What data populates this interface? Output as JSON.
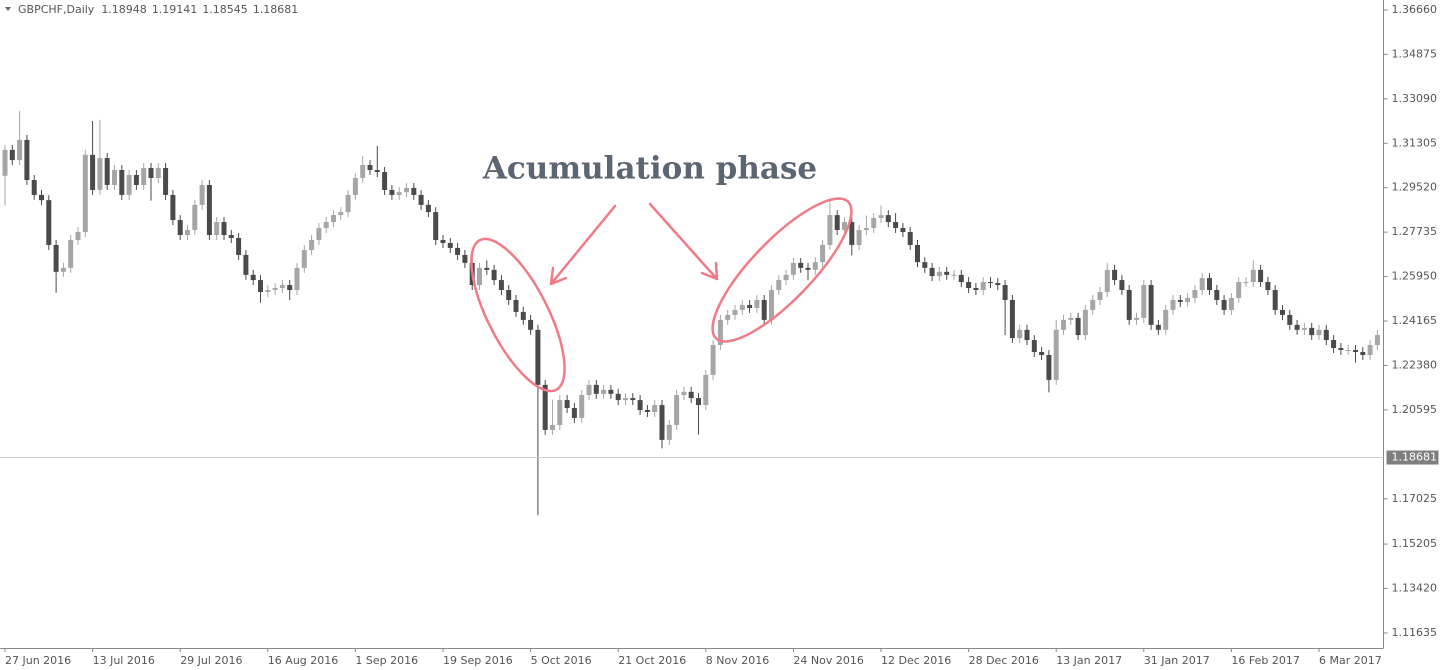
{
  "chart_data": {
    "type": "candlestick",
    "symbol": "GBPCHF,Daily",
    "quote": [
      1.18948,
      1.19141,
      1.18545,
      1.18681
    ],
    "annotation": "Acumulation phase",
    "current_price": 1.18681,
    "up_color": "#a6a6a6",
    "down_color": "#4a4a4a",
    "ylim": [
      1.1103,
      1.3706
    ],
    "yticks": [
      {
        "value": 1.3666,
        "label": "1.36660"
      },
      1.34875,
      {
        "value": 1.3309,
        "label": "1.33090"
      },
      1.31305,
      {
        "value": 1.2952,
        "label": "1.29520"
      },
      1.27735,
      {
        "value": 1.2595,
        "label": "1.25950"
      },
      1.24165,
      {
        "value": 1.2238,
        "label": "1.22380"
      },
      1.20595,
      1.17025,
      1.15205,
      {
        "value": 1.1342,
        "label": "1.13420"
      },
      1.11635
    ],
    "categories": [
      "27 Jun 2016",
      null,
      null,
      null,
      null,
      null,
      null,
      null,
      null,
      null,
      null,
      null,
      "13 Jul 2016",
      null,
      null,
      null,
      null,
      null,
      null,
      null,
      null,
      null,
      null,
      null,
      "29 Jul 2016",
      null,
      null,
      null,
      null,
      null,
      null,
      null,
      null,
      null,
      null,
      null,
      "16 Aug 2016",
      null,
      null,
      null,
      null,
      null,
      null,
      null,
      null,
      null,
      null,
      null,
      "1 Sep 2016",
      null,
      null,
      null,
      null,
      null,
      null,
      null,
      null,
      null,
      null,
      null,
      "19 Sep 2016",
      null,
      null,
      null,
      null,
      null,
      null,
      null,
      null,
      null,
      null,
      null,
      "5 Oct 2016",
      null,
      null,
      null,
      null,
      null,
      null,
      null,
      null,
      null,
      null,
      null,
      "21 Oct 2016",
      null,
      null,
      null,
      null,
      null,
      null,
      null,
      null,
      null,
      null,
      null,
      "8 Nov 2016",
      null,
      null,
      null,
      null,
      null,
      null,
      null,
      null,
      null,
      null,
      null,
      "24 Nov 2016",
      null,
      null,
      null,
      null,
      null,
      null,
      null,
      null,
      null,
      null,
      null,
      "12 Dec 2016",
      null,
      null,
      null,
      null,
      null,
      null,
      null,
      null,
      null,
      null,
      null,
      "28 Dec 2016",
      null,
      null,
      null,
      null,
      null,
      null,
      null,
      null,
      null,
      null,
      null,
      "13 Jan 2017",
      null,
      null,
      null,
      null,
      null,
      null,
      null,
      null,
      null,
      null,
      null,
      "31 Jan 2017",
      null,
      null,
      null,
      null,
      null,
      null,
      null,
      null,
      null,
      null,
      null,
      "16 Feb 2017",
      null,
      null,
      null,
      null,
      null,
      null,
      null,
      null,
      null,
      null,
      null,
      "6 Mar 2017",
      null,
      null,
      null,
      null,
      null,
      null,
      null,
      null
    ],
    "close": [
      1.3104,
      1.3063,
      1.3144,
      1.2983,
      1.2923,
      1.2902,
      1.2722,
      1.2614,
      1.263,
      1.2742,
      1.2774,
      1.3084,
      1.2943,
      1.3071,
      1.2963,
      1.3023,
      1.2923,
      1.3003,
      1.2963,
      1.3031,
      1.2991,
      1.3031,
      1.2923,
      1.2822,
      1.2762,
      1.2782,
      1.2883,
      1.2963,
      1.2762,
      1.2814,
      1.2762,
      1.275,
      1.2682,
      1.2602,
      1.2581,
      1.2533,
      1.2541,
      1.2549,
      1.2561,
      1.2541,
      1.263,
      1.2702,
      1.2742,
      1.279,
      1.2814,
      1.2842,
      1.2854,
      1.2923,
      1.2991,
      1.3043,
      1.3023,
      1.3015,
      1.2943,
      1.2923,
      1.2934,
      1.2951,
      1.2923,
      1.2883,
      1.2854,
      1.2742,
      1.273,
      1.271,
      1.2682,
      1.265,
      1.2561,
      1.263,
      1.2622,
      1.2581,
      1.2541,
      1.2501,
      1.2453,
      1.2421,
      1.2381,
      1.216,
      1.1979,
      1.1999,
      1.2099,
      1.2067,
      1.2027,
      1.2119,
      1.216,
      1.2124,
      1.214,
      1.2124,
      1.2099,
      1.2107,
      1.2099,
      1.2059,
      1.2051,
      1.2079,
      1.1939,
      1.1999,
      1.2119,
      1.2132,
      1.2107,
      1.2079,
      1.22,
      1.232,
      1.2421,
      1.2441,
      1.2461,
      1.2481,
      1.2469,
      1.2501,
      1.2421,
      1.2541,
      1.2581,
      1.2602,
      1.265,
      1.263,
      1.2622,
      1.2653,
      1.2722,
      1.2842,
      1.2782,
      1.2814,
      1.2722,
      1.2782,
      1.279,
      1.283,
      1.2842,
      1.2814,
      1.279,
      1.2774,
      1.2722,
      1.2653,
      1.263,
      1.2597,
      1.2614,
      1.2602,
      1.2602,
      1.2573,
      1.2549,
      1.2541,
      1.2573,
      1.2569,
      1.2561,
      1.2501,
      1.2348,
      1.2381,
      1.234,
      1.2292,
      1.228,
      1.218,
      1.2381,
      1.2421,
      1.2429,
      1.236,
      1.2461,
      1.2501,
      1.2533,
      1.2622,
      1.2581,
      1.2541,
      1.2421,
      1.2429,
      1.2561,
      1.2401,
      1.2381,
      1.2461,
      1.2501,
      1.2493,
      1.2509,
      1.2541,
      1.2589,
      1.2541,
      1.2501,
      1.2461,
      1.2509,
      1.2573,
      1.2573,
      1.2622,
      1.2573,
      1.2541,
      1.2461,
      1.2441,
      1.2401,
      1.2381,
      1.2389,
      1.236,
      1.2381,
      1.234,
      1.2308,
      1.23,
      1.23,
      1.2292,
      1.228,
      1.232,
      1.236
    ],
    "open": [
      1.3,
      1.3104,
      1.3063,
      1.3144,
      1.2983,
      1.2923,
      1.2902,
      1.2722,
      1.2614,
      1.263,
      1.2742,
      1.2774,
      1.3084,
      1.2943,
      1.3071,
      1.2963,
      1.3023,
      1.2923,
      1.3003,
      1.2963,
      1.3031,
      1.2991,
      1.3031,
      1.2923,
      1.2822,
      1.2762,
      1.2782,
      1.2883,
      1.2963,
      1.2762,
      1.2814,
      1.2762,
      1.275,
      1.2682,
      1.2602,
      1.2581,
      1.2533,
      1.2541,
      1.2549,
      1.2561,
      1.2541,
      1.263,
      1.2702,
      1.2742,
      1.279,
      1.2814,
      1.2842,
      1.2854,
      1.2923,
      1.2991,
      1.3043,
      1.3023,
      1.3015,
      1.2943,
      1.2923,
      1.2934,
      1.2951,
      1.2923,
      1.2883,
      1.2854,
      1.2742,
      1.273,
      1.271,
      1.2682,
      1.265,
      1.2561,
      1.263,
      1.2622,
      1.2581,
      1.2541,
      1.2501,
      1.2453,
      1.2421,
      1.2381,
      1.216,
      1.1979,
      1.1999,
      1.2099,
      1.2067,
      1.2027,
      1.2119,
      1.216,
      1.2124,
      1.214,
      1.2124,
      1.2099,
      1.2107,
      1.2099,
      1.2059,
      1.2051,
      1.2079,
      1.1939,
      1.1999,
      1.2119,
      1.2132,
      1.2107,
      1.2079,
      1.22,
      1.232,
      1.2421,
      1.2441,
      1.2461,
      1.2481,
      1.2469,
      1.2501,
      1.2421,
      1.2541,
      1.2581,
      1.2602,
      1.265,
      1.263,
      1.2622,
      1.2653,
      1.2722,
      1.2842,
      1.2782,
      1.2814,
      1.2722,
      1.2782,
      1.279,
      1.283,
      1.2842,
      1.2814,
      1.279,
      1.2774,
      1.2722,
      1.2653,
      1.263,
      1.2597,
      1.2614,
      1.2602,
      1.2602,
      1.2573,
      1.2549,
      1.2541,
      1.2573,
      1.2569,
      1.2561,
      1.2501,
      1.2348,
      1.2381,
      1.234,
      1.2292,
      1.228,
      1.218,
      1.2381,
      1.2421,
      1.2429,
      1.236,
      1.2461,
      1.2501,
      1.2533,
      1.2622,
      1.2581,
      1.2541,
      1.2421,
      1.2429,
      1.2561,
      1.2401,
      1.2381,
      1.2461,
      1.2501,
      1.2493,
      1.2509,
      1.2541,
      1.2589,
      1.2541,
      1.2501,
      1.2461,
      1.2509,
      1.2573,
      1.2573,
      1.2622,
      1.2573,
      1.2541,
      1.2461,
      1.2441,
      1.2401,
      1.2381,
      1.2389,
      1.236,
      1.2381,
      1.234,
      1.2308,
      1.23,
      1.23,
      1.2292,
      1.228,
      1.232
    ],
    "high": [
      1.3124,
      1.3124,
      1.326,
      1.3164,
      1.3003,
      1.2943,
      1.2922,
      1.2742,
      1.265,
      1.2762,
      1.2794,
      1.3104,
      1.322,
      1.3225,
      1.3091,
      1.3043,
      1.3043,
      1.3023,
      1.3023,
      1.3051,
      1.3051,
      1.3051,
      1.3051,
      1.2943,
      1.2842,
      1.2802,
      1.2903,
      1.2983,
      1.2983,
      1.2834,
      1.2834,
      1.2782,
      1.277,
      1.2702,
      1.2622,
      1.2601,
      1.2561,
      1.2569,
      1.2581,
      1.2581,
      1.265,
      1.2722,
      1.2762,
      1.281,
      1.2834,
      1.2862,
      1.2874,
      1.2943,
      1.3011,
      1.308,
      1.3063,
      1.312,
      1.3035,
      1.2963,
      1.2954,
      1.2971,
      1.2971,
      1.2943,
      1.2903,
      1.2874,
      1.2762,
      1.275,
      1.273,
      1.2702,
      1.267,
      1.265,
      1.266,
      1.2642,
      1.2601,
      1.2561,
      1.2521,
      1.2473,
      1.2441,
      1.2401,
      1.218,
      1.21,
      1.2119,
      1.2119,
      1.2087,
      1.2139,
      1.218,
      1.218,
      1.216,
      1.216,
      1.2144,
      1.2127,
      1.2127,
      1.2119,
      1.2079,
      1.2099,
      1.2099,
      1.2019,
      1.2139,
      1.2152,
      1.2152,
      1.2127,
      1.222,
      1.234,
      1.2441,
      1.2461,
      1.2481,
      1.2501,
      1.2501,
      1.2521,
      1.2521,
      1.2561,
      1.2601,
      1.2622,
      1.267,
      1.267,
      1.265,
      1.2673,
      1.2742,
      1.29,
      1.2862,
      1.2834,
      1.2834,
      1.2802,
      1.284,
      1.285,
      1.288,
      1.2862,
      1.285,
      1.281,
      1.2794,
      1.2742,
      1.2673,
      1.265,
      1.2634,
      1.2634,
      1.2622,
      1.2622,
      1.2593,
      1.2569,
      1.2593,
      1.2593,
      1.2589,
      1.2581,
      1.2521,
      1.2401,
      1.2401,
      1.236,
      1.2312,
      1.23,
      1.2421,
      1.2441,
      1.2449,
      1.2449,
      1.2481,
      1.2521,
      1.2553,
      1.265,
      1.2642,
      1.2601,
      1.2561,
      1.2449,
      1.2581,
      1.2581,
      1.2421,
      1.2481,
      1.2521,
      1.2521,
      1.2529,
      1.2561,
      1.2609,
      1.2609,
      1.2561,
      1.2521,
      1.2529,
      1.2593,
      1.2593,
      1.266,
      1.2642,
      1.2593,
      1.2561,
      1.2481,
      1.2461,
      1.2421,
      1.2409,
      1.2409,
      1.2401,
      1.2401,
      1.236,
      1.2328,
      1.232,
      1.232,
      1.2312,
      1.234,
      1.238
    ],
    "low": [
      1.288,
      1.3043,
      1.3043,
      1.2963,
      1.2903,
      1.2882,
      1.2702,
      1.253,
      1.2594,
      1.261,
      1.2722,
      1.2754,
      1.2923,
      1.2923,
      1.2943,
      1.2943,
      1.2903,
      1.2903,
      1.2943,
      1.2943,
      1.29,
      1.2971,
      1.2903,
      1.2802,
      1.2742,
      1.2742,
      1.2762,
      1.2863,
      1.2742,
      1.2742,
      1.2742,
      1.273,
      1.2662,
      1.2582,
      1.2561,
      1.249,
      1.2513,
      1.2521,
      1.2529,
      1.25,
      1.2521,
      1.261,
      1.2682,
      1.2722,
      1.277,
      1.2794,
      1.2822,
      1.2834,
      1.2903,
      1.2971,
      1.3003,
      1.2995,
      1.2923,
      1.2903,
      1.2903,
      1.2914,
      1.2903,
      1.2863,
      1.2834,
      1.2722,
      1.271,
      1.269,
      1.2662,
      1.263,
      1.2541,
      1.2541,
      1.2602,
      1.2561,
      1.2521,
      1.2481,
      1.2433,
      1.2401,
      1.2361,
      1.1637,
      1.1959,
      1.1959,
      1.1979,
      1.2047,
      1.2007,
      1.2007,
      1.2099,
      1.2104,
      1.2104,
      1.2104,
      1.2079,
      1.2079,
      1.2079,
      1.2039,
      1.2031,
      1.2031,
      1.1905,
      1.1919,
      1.1979,
      1.2099,
      1.2087,
      1.196,
      1.2059,
      1.218,
      1.23,
      1.2401,
      1.2421,
      1.2441,
      1.2449,
      1.2449,
      1.2401,
      1.2401,
      1.2521,
      1.2561,
      1.2582,
      1.261,
      1.258,
      1.2602,
      1.2633,
      1.2702,
      1.2762,
      1.2762,
      1.268,
      1.2702,
      1.2762,
      1.277,
      1.281,
      1.2794,
      1.277,
      1.2754,
      1.2702,
      1.2633,
      1.261,
      1.2577,
      1.2577,
      1.2582,
      1.2582,
      1.2553,
      1.2529,
      1.2521,
      1.2521,
      1.2549,
      1.2541,
      1.236,
      1.2328,
      1.2328,
      1.232,
      1.2272,
      1.226,
      1.213,
      1.216,
      1.2361,
      1.2401,
      1.234,
      1.234,
      1.2441,
      1.2481,
      1.2513,
      1.2561,
      1.2521,
      1.2401,
      1.2401,
      1.2409,
      1.2381,
      1.2361,
      1.2361,
      1.2441,
      1.2473,
      1.2473,
      1.2489,
      1.2521,
      1.2521,
      1.2481,
      1.2441,
      1.2441,
      1.2489,
      1.2553,
      1.2553,
      1.2553,
      1.2521,
      1.2441,
      1.2421,
      1.2381,
      1.2361,
      1.2361,
      1.234,
      1.234,
      1.232,
      1.2288,
      1.228,
      1.228,
      1.225,
      1.226,
      1.226,
      1.23
    ]
  }
}
